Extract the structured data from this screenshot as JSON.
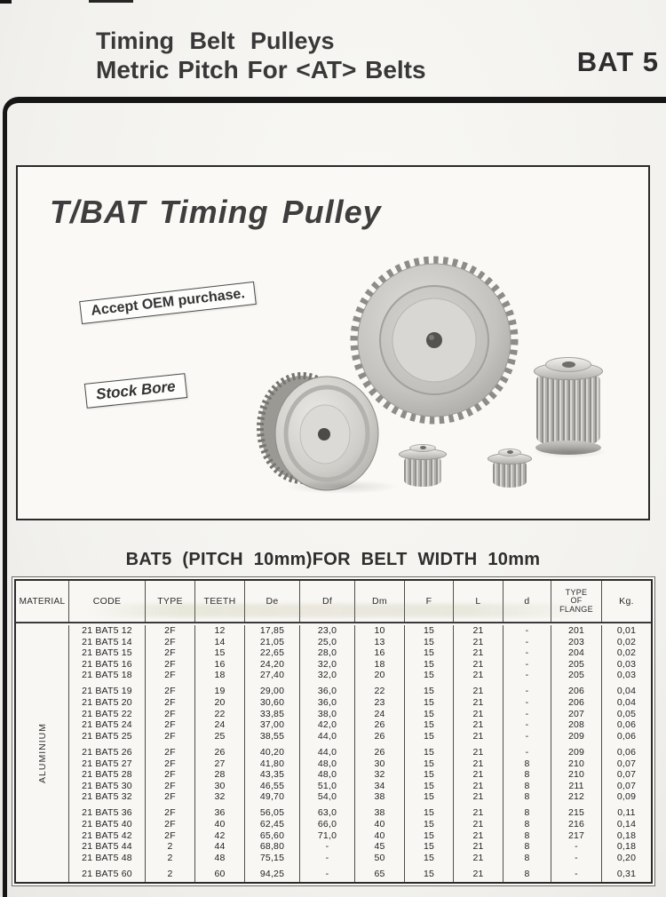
{
  "header": {
    "title_line1": "Timing Belt Pulleys",
    "title_line2": "Metric Pitch For <AT> Belts",
    "page_code": "BAT 5"
  },
  "hero": {
    "title": "T/BAT Timing Pulley",
    "oem_badge": "Accept OEM purchase.",
    "stock_badge": "Stock Bore",
    "photos": [
      "large-gear-pulley",
      "flanged-pulley",
      "barrel-pulley",
      "small-pulley",
      "small-pulley"
    ]
  },
  "table": {
    "title": "BAT5 (PITCH 10mm)FOR BELT WIDTH 10mm",
    "material_label": "ALUMINIUM",
    "columns": [
      "MATERIAL",
      "CODE",
      "TYPE",
      "TEETH",
      "De",
      "Df",
      "Dm",
      "F",
      "L",
      "d",
      "TYPE OF FLANGE",
      "Kg."
    ],
    "groups": [
      [
        [
          "21 BAT5 12",
          "2F",
          "12",
          "17,85",
          "23,0",
          "10",
          "15",
          "21",
          "-",
          "201",
          "0,01"
        ],
        [
          "21 BAT5 14",
          "2F",
          "14",
          "21,05",
          "25,0",
          "13",
          "15",
          "21",
          "-",
          "203",
          "0,02"
        ],
        [
          "21 BAT5 15",
          "2F",
          "15",
          "22,65",
          "28,0",
          "16",
          "15",
          "21",
          "-",
          "204",
          "0,02"
        ],
        [
          "21 BAT5 16",
          "2F",
          "16",
          "24,20",
          "32,0",
          "18",
          "15",
          "21",
          "-",
          "205",
          "0,03"
        ],
        [
          "21 BAT5 18",
          "2F",
          "18",
          "27,40",
          "32,0",
          "20",
          "15",
          "21",
          "-",
          "205",
          "0,03"
        ]
      ],
      [
        [
          "21 BAT5 19",
          "2F",
          "19",
          "29,00",
          "36,0",
          "22",
          "15",
          "21",
          "-",
          "206",
          "0,04"
        ],
        [
          "21 BAT5 20",
          "2F",
          "20",
          "30,60",
          "36,0",
          "23",
          "15",
          "21",
          "-",
          "206",
          "0,04"
        ],
        [
          "21 BAT5 22",
          "2F",
          "22",
          "33,85",
          "38,0",
          "24",
          "15",
          "21",
          "-",
          "207",
          "0,05"
        ],
        [
          "21 BAT5 24",
          "2F",
          "24",
          "37,00",
          "42,0",
          "26",
          "15",
          "21",
          "-",
          "208",
          "0,06"
        ],
        [
          "21 BAT5 25",
          "2F",
          "25",
          "38,55",
          "44,0",
          "26",
          "15",
          "21",
          "-",
          "209",
          "0,06"
        ]
      ],
      [
        [
          "21 BAT5 26",
          "2F",
          "26",
          "40,20",
          "44,0",
          "26",
          "15",
          "21",
          "-",
          "209",
          "0,06"
        ],
        [
          "21 BAT5 27",
          "2F",
          "27",
          "41,80",
          "48,0",
          "30",
          "15",
          "21",
          "8",
          "210",
          "0,07"
        ],
        [
          "21 BAT5 28",
          "2F",
          "28",
          "43,35",
          "48,0",
          "32",
          "15",
          "21",
          "8",
          "210",
          "0,07"
        ],
        [
          "21 BAT5 30",
          "2F",
          "30",
          "46,55",
          "51,0",
          "34",
          "15",
          "21",
          "8",
          "211",
          "0,07"
        ],
        [
          "21 BAT5 32",
          "2F",
          "32",
          "49,70",
          "54,0",
          "38",
          "15",
          "21",
          "8",
          "212",
          "0,09"
        ]
      ],
      [
        [
          "21 BAT5 36",
          "2F",
          "36",
          "56,05",
          "63,0",
          "38",
          "15",
          "21",
          "8",
          "215",
          "0,11"
        ],
        [
          "21 BAT5 40",
          "2F",
          "40",
          "62,45",
          "66,0",
          "40",
          "15",
          "21",
          "8",
          "216",
          "0,14"
        ],
        [
          "21 BAT5 42",
          "2F",
          "42",
          "65,60",
          "71,0",
          "40",
          "15",
          "21",
          "8",
          "217",
          "0,18"
        ],
        [
          "21 BAT5 44",
          "2",
          "44",
          "68,80",
          "-",
          "45",
          "15",
          "21",
          "8",
          "-",
          "0,18"
        ],
        [
          "21 BAT5 48",
          "2",
          "48",
          "75,15",
          "-",
          "50",
          "15",
          "21",
          "8",
          "-",
          "0,20"
        ]
      ],
      [
        [
          "21 BAT5 60",
          "2",
          "60",
          "94,25",
          "-",
          "65",
          "15",
          "21",
          "8",
          "-",
          "0,31"
        ]
      ]
    ]
  },
  "colors": {
    "paper": "#f5f4f0",
    "ink": "#2b2b2b",
    "rule": "#161616"
  }
}
